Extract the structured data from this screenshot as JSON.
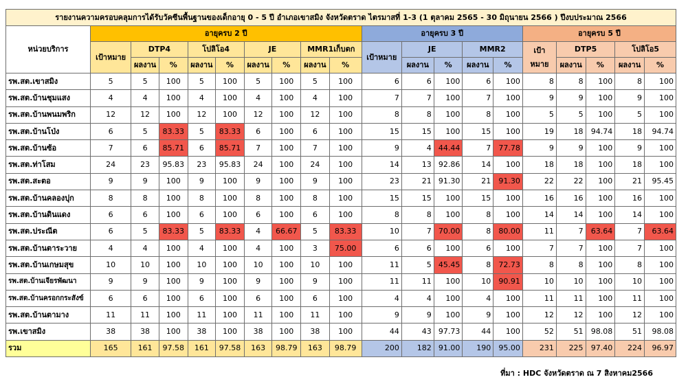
{
  "title": "รายงานความครอบคลุมการได้รับวัคซีนพื้นฐานของเด็กอายุ 0 - 5 ปี อำเภอเขาสมิง จังหวัดตราด ไตรมาสที่ 1-3 (1 ตุลาคม 2565 - 30 มิถุนายน 2566 ) ปีงบประมาณ 2566",
  "headers": {
    "unit": "หน่วยบริการ",
    "age2": "อายุครบ 2 ปี",
    "age3": "อายุครบ 3 ปี",
    "age5": "อายุครบ 5 ปี",
    "target": "เป้าหมาย",
    "target5": "เป้าหมาย",
    "result": "ผลงาน",
    "percent": "%",
    "vaccines2": [
      "DTP4",
      "โปลิโอ4",
      "JE",
      "MMR1เก็บตก"
    ],
    "vaccines3": [
      "JE",
      "MMR2"
    ],
    "vaccines5": [
      "DTP5",
      "โปลิโอ5"
    ]
  },
  "rows": [
    {
      "name": "รพ.สต.เขาสมิง",
      "values": [
        "5",
        "5",
        "100",
        "5",
        "100",
        "5",
        "100",
        "5",
        "100",
        "6",
        "6",
        "100",
        "6",
        "100",
        "8",
        "8",
        "100",
        "8",
        "100"
      ]
    },
    {
      "name": "รพ.สต.บ้านชุมแสง",
      "values": [
        "4",
        "4",
        "100",
        "4",
        "100",
        "4",
        "100",
        "4",
        "100",
        "7",
        "7",
        "100",
        "7",
        "100",
        "9",
        "9",
        "100",
        "9",
        "100"
      ]
    },
    {
      "name": "รพ.สต.บ้านพนมพริก",
      "values": [
        "12",
        "12",
        "100",
        "12",
        "100",
        "12",
        "100",
        "12",
        "100",
        "8",
        "8",
        "100",
        "8",
        "100",
        "5",
        "5",
        "100",
        "5",
        "100"
      ]
    },
    {
      "name": "รพ.สต.บ้านโป่ง",
      "values": [
        "6",
        "5",
        "83.33",
        "5",
        "83.33",
        "6",
        "100",
        "6",
        "100",
        "15",
        "15",
        "100",
        "15",
        "100",
        "19",
        "18",
        "94.74",
        "18",
        "94.74"
      ]
    },
    {
      "name": "รพ.สต.บ้านซ้อ",
      "values": [
        "7",
        "6",
        "85.71",
        "6",
        "85.71",
        "7",
        "100",
        "7",
        "100",
        "9",
        "4",
        "44.44",
        "7",
        "77.78",
        "9",
        "9",
        "100",
        "9",
        "100"
      ]
    },
    {
      "name": "รพ.สต.ท่าโสม",
      "values": [
        "24",
        "23",
        "95.83",
        "23",
        "95.83",
        "24",
        "100",
        "24",
        "100",
        "14",
        "13",
        "92.86",
        "14",
        "100",
        "18",
        "18",
        "100",
        "18",
        "100"
      ]
    },
    {
      "name": "รพ.สต.สะตอ",
      "values": [
        "9",
        "9",
        "100",
        "9",
        "100",
        "9",
        "100",
        "9",
        "100",
        "23",
        "21",
        "91.30",
        "21",
        "91.30",
        "22",
        "22",
        "100",
        "21",
        "95.45"
      ]
    },
    {
      "name": "รพ.สต.บ้านคลองปุก",
      "values": [
        "8",
        "8",
        "100",
        "8",
        "100",
        "8",
        "100",
        "8",
        "100",
        "15",
        "15",
        "100",
        "15",
        "100",
        "16",
        "16",
        "100",
        "16",
        "100"
      ]
    },
    {
      "name": "รพ.สต.บ้านดินแดง",
      "values": [
        "6",
        "6",
        "100",
        "6",
        "100",
        "6",
        "100",
        "6",
        "100",
        "8",
        "8",
        "100",
        "8",
        "100",
        "14",
        "14",
        "100",
        "14",
        "100"
      ]
    },
    {
      "name": "รพ.สต.ประณีต",
      "values": [
        "6",
        "5",
        "83.33",
        "5",
        "83.33",
        "4",
        "66.67",
        "5",
        "83.33",
        "10",
        "7",
        "70.00",
        "8",
        "80.00",
        "11",
        "7",
        "63.64",
        "7",
        "63.64"
      ]
    },
    {
      "name": "รพ.สต.บ้านตาระวาย",
      "values": [
        "4",
        "4",
        "100",
        "4",
        "100",
        "4",
        "100",
        "3",
        "75.00",
        "6",
        "6",
        "100",
        "6",
        "100",
        "7",
        "7",
        "100",
        "7",
        "100"
      ]
    },
    {
      "name": "รพ.สต.บ้านเกษมสุข",
      "values": [
        "10",
        "10",
        "100",
        "10",
        "100",
        "10",
        "100",
        "10",
        "100",
        "11",
        "5",
        "45.45",
        "8",
        "72.73",
        "8",
        "8",
        "100",
        "8",
        "100"
      ]
    },
    {
      "name": "รพ.สต.บ้านเจียรพัฒนา",
      "values": [
        "9",
        "9",
        "100",
        "9",
        "100",
        "9",
        "100",
        "9",
        "100",
        "11",
        "11",
        "100",
        "10",
        "90.91",
        "10",
        "10",
        "100",
        "10",
        "100"
      ]
    },
    {
      "name": "รพ.สต.บ้านครอกกระสังข์",
      "values": [
        "6",
        "6",
        "100",
        "6",
        "100",
        "6",
        "100",
        "6",
        "100",
        "4",
        "4",
        "100",
        "4",
        "100",
        "11",
        "11",
        "100",
        "11",
        "100"
      ]
    },
    {
      "name": "รพ.สต.บ้านตามาง",
      "values": [
        "11",
        "11",
        "100",
        "11",
        "100",
        "11",
        "100",
        "11",
        "100",
        "9",
        "9",
        "100",
        "9",
        "100",
        "12",
        "12",
        "100",
        "12",
        "100"
      ]
    },
    {
      "name": "รพ.เขาสมิง",
      "values": [
        "38",
        "38",
        "100",
        "38",
        "100",
        "38",
        "100",
        "38",
        "100",
        "44",
        "43",
        "97.73",
        "44",
        "100",
        "52",
        "51",
        "98.08",
        "51",
        "98.08"
      ]
    }
  ],
  "total": {
    "name": "รวม",
    "values": [
      "165",
      "161",
      "97.58",
      "161",
      "97.58",
      "163",
      "98.79",
      "163",
      "98.79",
      "200",
      "182",
      "91.00",
      "190",
      "95.00",
      "231",
      "225",
      "97.40",
      "224",
      "96.97"
    ]
  },
  "highlight": {
    "3": [
      2,
      4
    ],
    "4": [
      2,
      4,
      11,
      13
    ],
    "6": [
      13
    ],
    "9": [
      2,
      4,
      6,
      8,
      11,
      13,
      16,
      18
    ],
    "10": [
      8
    ],
    "11": [
      11,
      13
    ],
    "12": [
      13
    ]
  },
  "colors": {
    "alert": "#f1574c",
    "title_bg": "#fff2cc",
    "age2_header": "#ffc000",
    "age2_sub": "#ffe699",
    "age3_header": "#8eaadb",
    "age3_sub": "#b4c6e7",
    "age5_header": "#f4b084",
    "age5_sub": "#f8cbad",
    "total_name": "#ffff99"
  },
  "source": "ที่มา : HDC จังหวัดตราด ณ 7 สิงหาคม2566"
}
